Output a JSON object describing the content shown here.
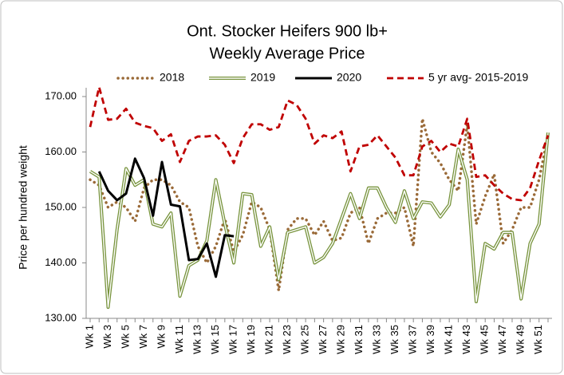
{
  "chart_data": {
    "type": "line",
    "title": [
      "Ont. Stocker Heifers 900 lb+",
      "Weekly Average Price"
    ],
    "y_label": "Price per hundred weight",
    "categories": [
      "Wk 1",
      null,
      "Wk 3",
      null,
      "Wk 5",
      null,
      "Wk 7",
      null,
      "Wk 9",
      null,
      "Wk 11",
      null,
      "Wk 13",
      null,
      "Wk 15",
      null,
      "Wk 17",
      null,
      "Wk 19",
      null,
      "Wk 21",
      null,
      "Wk 23",
      null,
      "Wk 25",
      null,
      "Wk 27",
      null,
      "Wk 29",
      null,
      "Wk 31",
      null,
      "Wk 33",
      null,
      "Wk 35",
      null,
      "Wk 37",
      null,
      "Wk 39",
      null,
      "Wk 41",
      null,
      "Wk 43",
      null,
      "Wk 45",
      null,
      "Wk 47",
      null,
      "Wk 49",
      null,
      "Wk 51",
      null
    ],
    "ylim": [
      130,
      170
    ],
    "yticks": [
      {
        "value": 130,
        "label": "130.00"
      },
      {
        "value": 140,
        "label": "140.00"
      },
      {
        "value": 150,
        "label": "150.00"
      },
      {
        "value": 160,
        "label": "160.00"
      },
      {
        "value": 170,
        "label": "170.00"
      }
    ],
    "grid": false,
    "legend": "top",
    "series": [
      {
        "name": "2018",
        "color": "#9a6a38",
        "style": "dotted",
        "values": [
          155,
          154,
          150,
          151,
          150,
          147.5,
          153.5,
          155,
          155,
          154,
          151,
          150,
          143,
          140,
          143,
          148,
          142,
          145,
          151,
          150,
          146,
          135,
          146,
          148,
          148,
          145,
          147.5,
          144,
          144.5,
          149,
          150,
          143.5,
          148,
          149,
          149,
          150,
          143,
          166,
          160,
          158,
          155,
          153,
          165,
          147,
          152,
          156,
          143.5,
          146,
          150,
          150,
          155,
          163
        ]
      },
      {
        "name": "2019",
        "color": "#77933c",
        "style": "double",
        "values": [
          156.5,
          155.5,
          132,
          146,
          157,
          154,
          155,
          147,
          146.5,
          149,
          134,
          139.5,
          140.5,
          144,
          155,
          147,
          140,
          152.5,
          152.3,
          143,
          146.5,
          137,
          145.5,
          146,
          146.5,
          140,
          141,
          143.5,
          148,
          152.5,
          148,
          153.5,
          153.5,
          150,
          147.3,
          153,
          148,
          151,
          150.8,
          148.3,
          150.5,
          160.5,
          155,
          133,
          143.5,
          142.5,
          145.5,
          145.5,
          133.5,
          143.5,
          147,
          163.5
        ]
      },
      {
        "name": "2020",
        "color": "#000000",
        "style": "solid",
        "values": [
          null,
          156.5,
          153,
          151.3,
          152.5,
          158.8,
          155.3,
          148.5,
          158.2,
          150.5,
          150.2,
          140.5,
          140.7,
          143.5,
          137.5,
          145,
          144.8,
          null,
          null,
          null,
          null,
          null,
          null,
          null,
          null,
          null,
          null,
          null,
          null,
          null,
          null,
          null,
          null,
          null,
          null,
          null,
          null,
          null,
          null,
          null,
          null,
          null,
          null,
          null,
          null,
          null,
          null,
          null,
          null,
          null,
          null,
          null
        ]
      },
      {
        "name": "5 yr avg- 2015-2019",
        "color": "#c00000",
        "style": "dashed",
        "values": [
          164.5,
          171.7,
          165.8,
          166,
          167.8,
          165.3,
          164.7,
          164.3,
          162,
          163.2,
          158.2,
          162,
          162.8,
          162.8,
          163,
          161.3,
          158,
          162.5,
          165,
          165,
          164,
          164.5,
          169.3,
          168.5,
          166,
          161.5,
          163,
          162.5,
          163.7,
          156.5,
          161,
          161.3,
          163,
          161,
          159,
          155.8,
          155.8,
          161,
          162,
          160,
          161.5,
          161,
          166,
          155.5,
          155.8,
          154,
          152.5,
          151.5,
          151.3,
          153.5,
          158.5,
          163
        ]
      }
    ]
  }
}
